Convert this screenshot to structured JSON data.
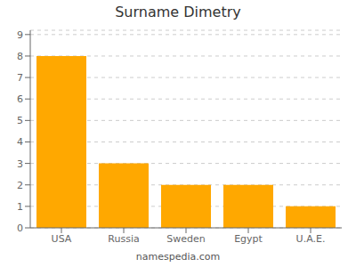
{
  "chart_data": {
    "type": "bar",
    "title": "Surname Dimetry",
    "categories": [
      "USA",
      "Russia",
      "Sweden",
      "Egypt",
      "U.A.E."
    ],
    "values": [
      8,
      3,
      2,
      2,
      1
    ],
    "color": "#FFA800",
    "ylim": [
      0,
      9.2
    ],
    "yticks": [
      0,
      1,
      2,
      3,
      4,
      5,
      6,
      7,
      8,
      9
    ],
    "grid": true,
    "annotations": [
      "namespedia.com"
    ]
  }
}
